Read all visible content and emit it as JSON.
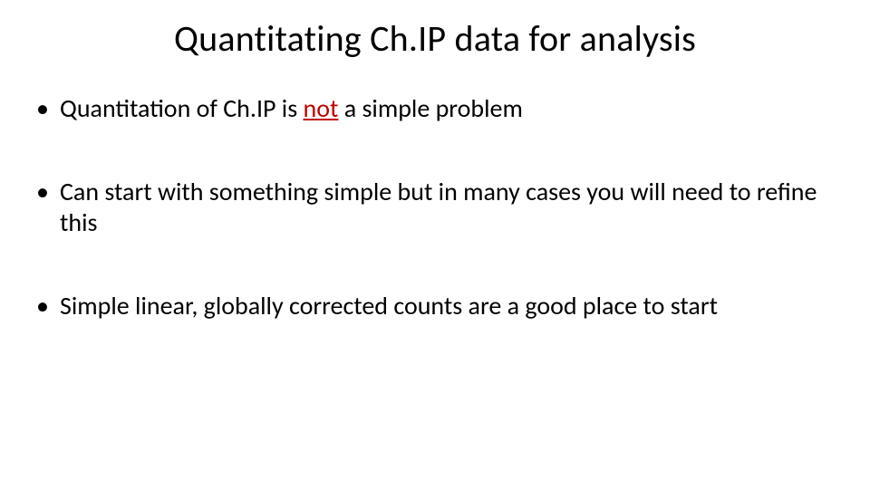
{
  "title": "Quantitating Ch.IP data for analysis",
  "bullets": [
    {
      "pre": "Quantitation of Ch.IP is ",
      "not": "not",
      "post": " a simple problem"
    },
    {
      "text": "Can start with something simple but in many cases you will need to refine this"
    },
    {
      "text": "Simple linear, globally corrected counts are a good place to start"
    }
  ],
  "colors": {
    "background": "#ffffff",
    "text": "#000000",
    "accent_not": "#c00000"
  },
  "fonts": {
    "title_size_pt": 40,
    "body_size_pt": 28,
    "family": "Calibri"
  }
}
